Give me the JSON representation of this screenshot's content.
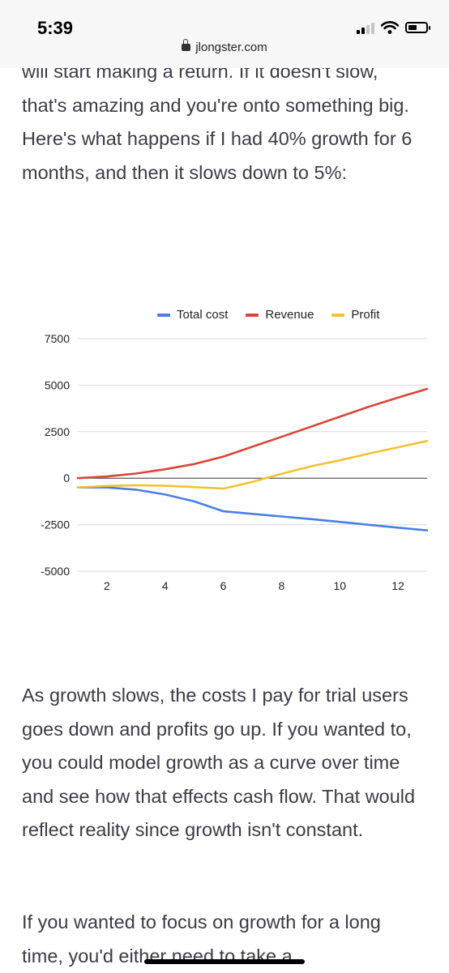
{
  "status_bar": {
    "time": "5:39"
  },
  "browser": {
    "url": "jlongster.com"
  },
  "article": {
    "para_intro": "will start making a return. If it doesn't slow, that's amazing and you're onto something big. Here's what happens if I had 40% growth for 6 months, and then it slows down to 5%:",
    "para_after": "As growth slows, the costs I pay for trial users goes down and profits go up. If you wanted to, you could model growth as a curve over time and see how that effects cash flow. That would reflect reality since growth isn't constant.",
    "para_final": "If you wanted to focus on growth for a long time, you'd either need to take a"
  },
  "chart_data": {
    "type": "line",
    "x": [
      1,
      2,
      3,
      4,
      5,
      6,
      7,
      8,
      9,
      10,
      11,
      12,
      13
    ],
    "series": [
      {
        "name": "Total cost",
        "color": "#4a7fe0",
        "values": [
          -500,
          -500,
          -620,
          -880,
          -1250,
          -1780,
          -1920,
          -2060,
          -2200,
          -2350,
          -2510,
          -2660,
          -2810
        ]
      },
      {
        "name": "Revenue",
        "color": "#d6473a",
        "values": [
          0,
          90,
          250,
          480,
          760,
          1160,
          1690,
          2220,
          2760,
          3300,
          3840,
          4330,
          4800
        ]
      },
      {
        "name": "Profit",
        "color": "#f1c232",
        "values": [
          -500,
          -420,
          -380,
          -410,
          -480,
          -560,
          -200,
          230,
          630,
          960,
          1320,
          1660,
          2000
        ]
      }
    ],
    "yticks": [
      7500,
      5000,
      2500,
      0,
      -2500,
      -5000
    ],
    "xticks": [
      2,
      4,
      6,
      8,
      10,
      12
    ],
    "ylim": [
      -5000,
      7500
    ],
    "xlim": [
      1,
      13
    ],
    "legend_position": "top-right",
    "grid": true
  }
}
